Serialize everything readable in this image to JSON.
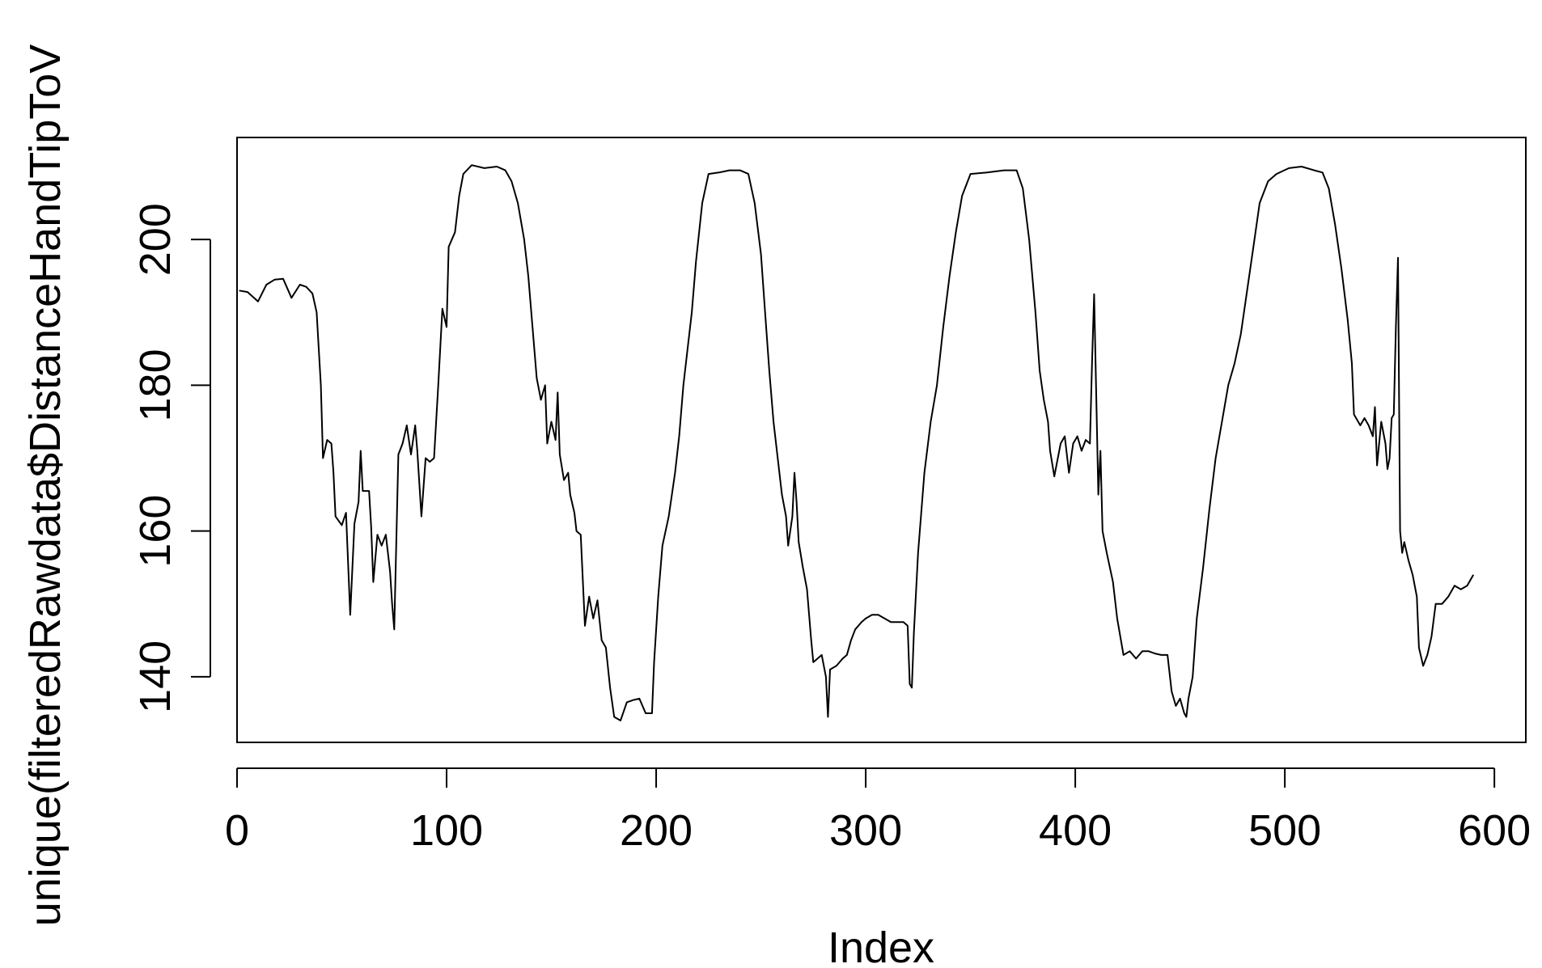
{
  "chart_data": {
    "type": "line",
    "xlabel": "Index",
    "ylabel": "unique(filteredRawdata$DistanceHandTipToV",
    "xlim": [
      0,
      615
    ],
    "ylim": [
      131,
      214
    ],
    "x_ticks": [
      0,
      100,
      200,
      300,
      400,
      500,
      600
    ],
    "y_ticks": [
      140,
      160,
      180,
      200
    ],
    "x_tick_labels": [
      "0",
      "100",
      "200",
      "300",
      "400",
      "500",
      "600"
    ],
    "y_tick_labels": [
      "140",
      "160",
      "180",
      "200"
    ],
    "grid": false,
    "series": [
      {
        "color": "#000000",
        "points": [
          [
            1,
            193
          ],
          [
            5,
            192.8
          ],
          [
            10,
            191.5
          ],
          [
            14,
            193.8
          ],
          [
            18,
            194.5
          ],
          [
            22,
            194.6
          ],
          [
            26,
            192
          ],
          [
            30,
            193.8
          ],
          [
            33,
            193.5
          ],
          [
            36,
            192.6
          ],
          [
            38,
            190
          ],
          [
            40,
            180
          ],
          [
            41,
            170
          ],
          [
            43,
            172.5
          ],
          [
            45,
            172
          ],
          [
            46,
            168
          ],
          [
            47,
            162
          ],
          [
            50,
            160.8
          ],
          [
            52,
            162.5
          ],
          [
            54,
            148.5
          ],
          [
            56,
            161
          ],
          [
            58,
            164
          ],
          [
            59,
            171
          ],
          [
            60,
            165.5
          ],
          [
            63,
            165.5
          ],
          [
            64,
            160.5
          ],
          [
            65,
            153
          ],
          [
            67,
            159.5
          ],
          [
            69,
            158
          ],
          [
            71,
            159.5
          ],
          [
            73,
            154.5
          ],
          [
            74,
            150
          ],
          [
            75,
            146.5
          ],
          [
            77,
            170.5
          ],
          [
            79,
            172
          ],
          [
            81,
            174.5
          ],
          [
            83,
            170.5
          ],
          [
            85,
            174.5
          ],
          [
            86,
            171
          ],
          [
            88,
            162
          ],
          [
            90,
            170
          ],
          [
            92,
            169.5
          ],
          [
            94,
            170
          ],
          [
            96,
            180
          ],
          [
            98,
            190.5
          ],
          [
            100,
            188
          ],
          [
            101,
            199
          ],
          [
            104,
            201
          ],
          [
            106,
            206
          ],
          [
            108,
            209
          ],
          [
            112,
            210.2
          ],
          [
            118,
            209.8
          ],
          [
            124,
            210
          ],
          [
            128,
            209.5
          ],
          [
            131,
            208
          ],
          [
            134,
            205
          ],
          [
            137,
            200
          ],
          [
            139,
            195
          ],
          [
            141,
            188
          ],
          [
            143,
            181
          ],
          [
            145,
            178
          ],
          [
            147,
            180
          ],
          [
            148,
            172
          ],
          [
            150,
            175
          ],
          [
            152,
            172.5
          ],
          [
            153,
            179
          ],
          [
            154,
            170.5
          ],
          [
            156,
            167
          ],
          [
            158,
            168
          ],
          [
            159,
            165
          ],
          [
            161,
            162.5
          ],
          [
            162,
            160
          ],
          [
            164,
            159.5
          ],
          [
            166,
            147
          ],
          [
            168,
            151
          ],
          [
            170,
            148
          ],
          [
            172,
            150.5
          ],
          [
            174,
            145
          ],
          [
            176,
            144
          ],
          [
            178,
            138.5
          ],
          [
            180,
            134.5
          ],
          [
            183,
            134
          ],
          [
            186,
            136.5
          ],
          [
            189,
            136.8
          ],
          [
            192,
            137
          ],
          [
            195,
            135
          ],
          [
            198,
            135
          ],
          [
            199,
            142
          ],
          [
            201,
            151
          ],
          [
            203,
            158
          ],
          [
            206,
            162
          ],
          [
            209,
            168
          ],
          [
            211,
            173
          ],
          [
            213,
            180
          ],
          [
            215,
            185
          ],
          [
            217,
            190
          ],
          [
            219,
            197
          ],
          [
            222,
            205
          ],
          [
            225,
            209
          ],
          [
            230,
            209.2
          ],
          [
            235,
            209.5
          ],
          [
            240,
            209.5
          ],
          [
            244,
            209
          ],
          [
            247,
            205
          ],
          [
            250,
            198
          ],
          [
            252,
            190
          ],
          [
            254,
            182
          ],
          [
            256,
            175
          ],
          [
            258,
            170
          ],
          [
            260,
            165
          ],
          [
            262,
            162
          ],
          [
            263,
            158
          ],
          [
            264,
            160
          ],
          [
            265,
            162
          ],
          [
            266,
            168
          ],
          [
            267,
            164
          ],
          [
            268,
            158.5
          ],
          [
            270,
            155
          ],
          [
            272,
            152
          ],
          [
            274,
            145
          ],
          [
            275,
            142
          ],
          [
            277,
            142.5
          ],
          [
            279,
            143
          ],
          [
            281,
            140
          ],
          [
            282,
            134.5
          ],
          [
            283,
            141
          ],
          [
            286,
            141.5
          ],
          [
            289,
            142.5
          ],
          [
            291,
            143
          ],
          [
            293,
            145
          ],
          [
            295,
            146.5
          ],
          [
            298,
            147.5
          ],
          [
            300,
            148
          ],
          [
            303,
            148.5
          ],
          [
            306,
            148.5
          ],
          [
            309,
            148
          ],
          [
            312,
            147.5
          ],
          [
            315,
            147.5
          ],
          [
            318,
            147.5
          ],
          [
            320,
            147
          ],
          [
            321,
            139
          ],
          [
            322,
            138.5
          ],
          [
            323,
            146
          ],
          [
            325,
            157
          ],
          [
            328,
            168
          ],
          [
            331,
            175
          ],
          [
            334,
            180
          ],
          [
            337,
            188
          ],
          [
            340,
            195
          ],
          [
            343,
            201
          ],
          [
            346,
            206
          ],
          [
            350,
            209
          ],
          [
            358,
            209.2
          ],
          [
            366,
            209.5
          ],
          [
            372,
            209.5
          ],
          [
            375,
            207
          ],
          [
            378,
            200
          ],
          [
            381,
            190
          ],
          [
            383,
            182
          ],
          [
            385,
            178
          ],
          [
            387,
            175
          ],
          [
            388,
            171
          ],
          [
            390,
            167.5
          ],
          [
            393,
            172
          ],
          [
            395,
            173
          ],
          [
            397,
            168
          ],
          [
            399,
            172
          ],
          [
            401,
            173
          ],
          [
            403,
            171
          ],
          [
            405,
            172.5
          ],
          [
            407,
            172
          ],
          [
            408,
            183
          ],
          [
            409,
            192.5
          ],
          [
            411,
            165
          ],
          [
            412,
            171
          ],
          [
            413,
            160
          ],
          [
            415,
            157
          ],
          [
            418,
            153
          ],
          [
            420,
            148
          ],
          [
            423,
            143
          ],
          [
            426,
            143.5
          ],
          [
            429,
            142.5
          ],
          [
            432,
            143.5
          ],
          [
            435,
            143.5
          ],
          [
            438,
            143.2
          ],
          [
            441,
            143
          ],
          [
            444,
            143
          ],
          [
            446,
            138
          ],
          [
            448,
            136
          ],
          [
            450,
            137
          ],
          [
            452,
            135
          ],
          [
            453,
            134.5
          ],
          [
            454,
            137
          ],
          [
            456,
            140
          ],
          [
            458,
            148
          ],
          [
            461,
            155
          ],
          [
            464,
            163
          ],
          [
            467,
            170
          ],
          [
            470,
            175
          ],
          [
            473,
            180
          ],
          [
            476,
            183
          ],
          [
            479,
            187
          ],
          [
            482,
            193
          ],
          [
            485,
            199
          ],
          [
            488,
            205
          ],
          [
            492,
            208
          ],
          [
            496,
            209
          ],
          [
            502,
            209.8
          ],
          [
            508,
            210
          ],
          [
            514,
            209.5
          ],
          [
            518,
            209.2
          ],
          [
            521,
            207
          ],
          [
            524,
            202
          ],
          [
            527,
            196
          ],
          [
            530,
            189
          ],
          [
            532,
            183
          ],
          [
            533,
            176
          ],
          [
            536,
            174.5
          ],
          [
            538,
            175.5
          ],
          [
            540,
            174.5
          ],
          [
            542,
            173
          ],
          [
            543,
            177
          ],
          [
            544,
            169
          ],
          [
            546,
            175
          ],
          [
            548,
            172
          ],
          [
            549,
            168.5
          ],
          [
            550,
            170
          ],
          [
            551,
            175.5
          ],
          [
            552,
            176
          ],
          [
            553,
            188
          ],
          [
            554,
            197.5
          ],
          [
            555,
            160
          ],
          [
            556,
            157
          ],
          [
            557,
            158.5
          ],
          [
            559,
            156
          ],
          [
            561,
            154
          ],
          [
            563,
            151
          ],
          [
            564,
            144
          ],
          [
            566,
            141.5
          ],
          [
            568,
            143
          ],
          [
            570,
            145.5
          ],
          [
            572,
            150
          ],
          [
            575,
            150
          ],
          [
            578,
            151
          ],
          [
            581,
            152.5
          ],
          [
            584,
            152
          ],
          [
            587,
            152.5
          ],
          [
            590,
            154
          ]
        ]
      }
    ]
  }
}
